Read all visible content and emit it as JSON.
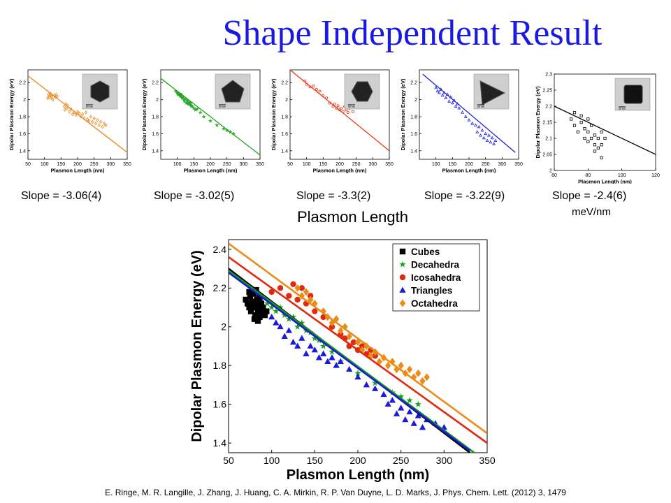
{
  "slide": {
    "title": "Shape Independent Result",
    "center_label": "Plasmon Length",
    "unit_label": "meV/nm",
    "citation": "E. Ringe, M. R. Langille, J. Zhang, J. Huang, C. A. Mirkin, R. P. Van Duyne, L. D. Marks, J. Phys. Chem. Lett. (2012) 3, 1479"
  },
  "slopes": [
    "Slope = -3.06(4)",
    "Slope = -3.02(5)",
    "Slope = -3.3(2)",
    "Slope = -3.22(9)",
    "Slope = -2.4(6)"
  ],
  "chart_data": [
    {
      "type": "scatter",
      "xlabel": "Plasmon Length (nm)",
      "ylabel": "Dipolar Plasmon Energy (eV)",
      "xlim": [
        50,
        350
      ],
      "ylim": [
        1.3,
        2.35
      ],
      "xticks": [
        50,
        100,
        150,
        200,
        250,
        300,
        350
      ],
      "yticks": [
        1.4,
        1.6,
        1.8,
        2,
        2.2
      ],
      "color": "#e88a1a",
      "marker": "diamond",
      "fit": {
        "x1": 50,
        "y1": 2.28,
        "x2": 350,
        "y2": 1.38
      },
      "series": [
        {
          "x": [
            110,
            112,
            114,
            116,
            118,
            120,
            122,
            125,
            130,
            132,
            135,
            138,
            160,
            162,
            165,
            168,
            170,
            175,
            180,
            185,
            190,
            195,
            200,
            205,
            210,
            215,
            220,
            225,
            230,
            235,
            240,
            245,
            250,
            255,
            260,
            265,
            270,
            275,
            280,
            285
          ],
          "y": [
            2.02,
            2.06,
            2.03,
            2.05,
            2.07,
            2.02,
            2.04,
            2.0,
            2.05,
            2.03,
            2.06,
            2.04,
            1.92,
            1.88,
            1.95,
            1.9,
            1.93,
            1.86,
            1.89,
            1.83,
            1.85,
            1.82,
            1.86,
            1.84,
            1.8,
            1.83,
            1.78,
            1.85,
            1.77,
            1.75,
            1.8,
            1.74,
            1.78,
            1.72,
            1.76,
            1.7,
            1.74,
            1.68,
            1.72,
            1.7
          ]
        }
      ]
    },
    {
      "type": "scatter",
      "xlabel": "Plasmon Length (nm)",
      "ylabel": "Dipolar Plasmon Energy (eV)",
      "xlim": [
        50,
        350
      ],
      "ylim": [
        1.3,
        2.35
      ],
      "xticks": [
        100,
        150,
        200,
        250,
        300,
        350
      ],
      "yticks": [
        1.4,
        1.6,
        1.8,
        2,
        2.2
      ],
      "color": "#1aa01a",
      "marker": "star",
      "fit": {
        "x1": 50,
        "y1": 2.25,
        "x2": 350,
        "y2": 1.35
      },
      "series": [
        {
          "x": [
            95,
            100,
            102,
            105,
            108,
            110,
            112,
            115,
            118,
            120,
            122,
            125,
            128,
            130,
            132,
            135,
            138,
            140,
            142,
            145,
            150,
            155,
            160,
            170,
            180,
            200,
            220,
            240,
            250,
            260,
            270
          ],
          "y": [
            2.1,
            2.08,
            2.06,
            2.07,
            2.05,
            2.04,
            2.06,
            2.02,
            2.03,
            2.0,
            1.98,
            2.01,
            1.96,
            1.99,
            1.95,
            1.97,
            1.94,
            1.96,
            1.93,
            1.92,
            1.9,
            1.88,
            1.89,
            1.85,
            1.8,
            1.75,
            1.7,
            1.66,
            1.64,
            1.62,
            1.6
          ]
        }
      ]
    },
    {
      "type": "scatter",
      "xlabel": "Plasmon Length (nm)",
      "ylabel": "Dipolar Plasmon Energy (eV)",
      "xlim": [
        50,
        350
      ],
      "ylim": [
        1.3,
        2.35
      ],
      "xticks": [
        50,
        100,
        150,
        200,
        250,
        300,
        350
      ],
      "yticks": [
        1.4,
        1.6,
        1.8,
        2,
        2.2
      ],
      "color": "#e83a1a",
      "marker": "circle",
      "fit": {
        "x1": 50,
        "y1": 2.35,
        "x2": 350,
        "y2": 1.4
      },
      "series": [
        {
          "x": [
            95,
            100,
            110,
            120,
            130,
            140,
            150,
            160,
            170,
            180,
            185,
            190,
            195,
            200,
            205,
            210,
            215,
            220,
            225,
            230,
            240
          ],
          "y": [
            2.22,
            2.18,
            2.15,
            2.16,
            2.12,
            2.1,
            2.05,
            2.02,
            1.96,
            1.92,
            1.95,
            1.9,
            1.93,
            1.88,
            1.9,
            1.86,
            1.92,
            1.88,
            1.85,
            1.9,
            1.86
          ]
        }
      ]
    },
    {
      "type": "scatter",
      "xlabel": "Plasmon Length (nm)",
      "ylabel": "Dipolar Plasmon Energy (eV)",
      "xlim": [
        50,
        350
      ],
      "ylim": [
        1.3,
        2.35
      ],
      "xticks": [
        100,
        150,
        200,
        250,
        300,
        350
      ],
      "yticks": [
        1.4,
        1.6,
        1.8,
        2,
        2.2
      ],
      "color": "#2020d8",
      "marker": "triangle",
      "fit": {
        "x1": 60,
        "y1": 2.3,
        "x2": 340,
        "y2": 1.38
      },
      "series": [
        {
          "x": [
            100,
            105,
            110,
            115,
            120,
            125,
            130,
            135,
            140,
            145,
            150,
            155,
            160,
            165,
            170,
            180,
            190,
            200,
            210,
            220,
            225,
            230,
            235,
            240,
            245,
            250,
            255,
            260,
            265,
            270,
            275,
            280
          ],
          "y": [
            2.14,
            2.1,
            2.08,
            2.12,
            2.05,
            2.08,
            2.02,
            2.06,
            1.98,
            2.03,
            1.96,
            1.99,
            1.92,
            1.95,
            1.9,
            1.85,
            1.8,
            1.76,
            1.72,
            1.7,
            1.62,
            1.68,
            1.58,
            1.64,
            1.55,
            1.6,
            1.52,
            1.58,
            1.5,
            1.55,
            1.48,
            1.52
          ]
        }
      ]
    },
    {
      "type": "scatter",
      "xlabel": "Plasmon Length (nm)",
      "ylabel": "Dipolar Plasmon Energy (eV)",
      "xlim": [
        60,
        120
      ],
      "ylim": [
        2.0,
        2.3
      ],
      "xticks": [
        60,
        80,
        100,
        120
      ],
      "yticks": [
        2,
        2.05,
        2.1,
        2.15,
        2.2,
        2.25,
        2.3
      ],
      "color": "#000000",
      "marker": "square",
      "fit": {
        "x1": 60,
        "y1": 2.2,
        "x2": 120,
        "y2": 2.05
      },
      "series": [
        {
          "x": [
            70,
            72,
            74,
            76,
            78,
            78,
            80,
            80,
            82,
            82,
            84,
            84,
            86,
            86,
            88,
            88,
            90,
            72,
            76,
            80,
            84,
            88
          ],
          "y": [
            2.16,
            2.14,
            2.12,
            2.15,
            2.1,
            2.13,
            2.09,
            2.12,
            2.1,
            2.14,
            2.08,
            2.11,
            2.1,
            2.07,
            2.12,
            2.08,
            2.1,
            2.18,
            2.17,
            2.16,
            2.06,
            2.04
          ]
        }
      ]
    },
    {
      "type": "scatter",
      "xlabel": "Plasmon Length (nm)",
      "ylabel": "Dipolar Plasmon Energy (eV)",
      "xlim": [
        50,
        350
      ],
      "ylim": [
        1.35,
        2.45
      ],
      "xticks": [
        50,
        100,
        150,
        200,
        250,
        300,
        350
      ],
      "yticks": [
        1.4,
        1.6,
        1.8,
        2,
        2.2,
        2.4
      ],
      "legend": "top-right",
      "series": [
        {
          "name": "Cubes",
          "color": "#000000",
          "marker": "square",
          "fit": {
            "x1": 50,
            "y1": 2.3,
            "x2": 330,
            "y2": 1.35
          },
          "x": [
            70,
            72,
            74,
            75,
            76,
            77,
            78,
            79,
            80,
            81,
            82,
            83,
            84,
            85,
            86,
            87,
            88,
            89,
            90,
            92,
            94,
            78,
            82,
            86,
            74,
            80,
            84
          ],
          "y": [
            2.14,
            2.12,
            2.1,
            2.16,
            2.08,
            2.13,
            2.1,
            2.17,
            2.12,
            2.06,
            2.1,
            2.14,
            2.08,
            2.11,
            2.05,
            2.09,
            2.12,
            2.07,
            2.1,
            2.06,
            2.08,
            2.18,
            2.19,
            2.15,
            2.18,
            2.04,
            2.03
          ]
        },
        {
          "name": "Decahedra",
          "color": "#14a014",
          "marker": "star",
          "fit": {
            "x1": 50,
            "y1": 2.29,
            "x2": 335,
            "y2": 1.35
          },
          "x": [
            95,
            100,
            105,
            110,
            115,
            120,
            125,
            130,
            135,
            140,
            145,
            150,
            155,
            160,
            170,
            180,
            200,
            220,
            240,
            250,
            260,
            270
          ],
          "y": [
            2.12,
            2.1,
            2.08,
            2.1,
            2.06,
            2.04,
            2.05,
            2.0,
            2.02,
            1.98,
            1.97,
            1.94,
            1.93,
            1.9,
            1.87,
            1.82,
            1.76,
            1.71,
            1.66,
            1.64,
            1.62,
            1.6
          ]
        },
        {
          "name": "Icosahedra",
          "color": "#e02a10",
          "marker": "circle",
          "fit": {
            "x1": 50,
            "y1": 2.36,
            "x2": 350,
            "y2": 1.4
          },
          "x": [
            100,
            110,
            120,
            125,
            130,
            135,
            140,
            145,
            150,
            160,
            170,
            180,
            185,
            190,
            195,
            200,
            205,
            210,
            215,
            220
          ],
          "y": [
            2.18,
            2.2,
            2.16,
            2.22,
            2.14,
            2.2,
            2.12,
            2.16,
            2.08,
            2.05,
            2.0,
            1.96,
            1.94,
            1.9,
            1.92,
            1.88,
            1.9,
            1.86,
            1.88,
            1.85
          ]
        },
        {
          "name": "Triangles",
          "color": "#1a1ad8",
          "marker": "triangle",
          "fit": {
            "x1": 50,
            "y1": 2.28,
            "x2": 330,
            "y2": 1.36
          },
          "x": [
            100,
            105,
            110,
            115,
            120,
            125,
            130,
            135,
            140,
            145,
            150,
            155,
            160,
            165,
            170,
            175,
            180,
            190,
            200,
            210,
            220,
            230,
            235,
            240,
            245,
            250,
            255,
            260,
            265,
            270,
            275,
            280,
            290,
            300
          ],
          "y": [
            2.05,
            2.02,
            2.0,
            1.95,
            1.98,
            1.92,
            1.9,
            1.94,
            1.86,
            1.9,
            1.88,
            1.84,
            1.86,
            1.82,
            1.84,
            1.8,
            1.82,
            1.78,
            1.74,
            1.7,
            1.68,
            1.65,
            1.6,
            1.62,
            1.55,
            1.58,
            1.52,
            1.56,
            1.5,
            1.54,
            1.48,
            1.52,
            1.5,
            1.48
          ]
        },
        {
          "name": "Octahedra",
          "color": "#ec8c18",
          "marker": "diamond",
          "fit": {
            "x1": 50,
            "y1": 2.43,
            "x2": 350,
            "y2": 1.45
          },
          "x": [
            130,
            135,
            140,
            145,
            150,
            160,
            165,
            170,
            175,
            180,
            185,
            190,
            200,
            205,
            210,
            215,
            220,
            225,
            230,
            235,
            240,
            245,
            250,
            255,
            260,
            265,
            270,
            275,
            280
          ],
          "y": [
            2.2,
            2.16,
            2.18,
            2.14,
            2.12,
            2.08,
            2.05,
            2.02,
            2.04,
            1.98,
            2.0,
            1.95,
            1.92,
            1.88,
            1.9,
            1.85,
            1.87,
            1.82,
            1.84,
            1.8,
            1.82,
            1.78,
            1.8,
            1.76,
            1.78,
            1.74,
            1.76,
            1.72,
            1.74
          ]
        }
      ]
    }
  ],
  "tem_inset_labels": [
    "50 nm",
    "50 nm",
    "50 nm",
    "50 nm",
    "50 nm"
  ]
}
